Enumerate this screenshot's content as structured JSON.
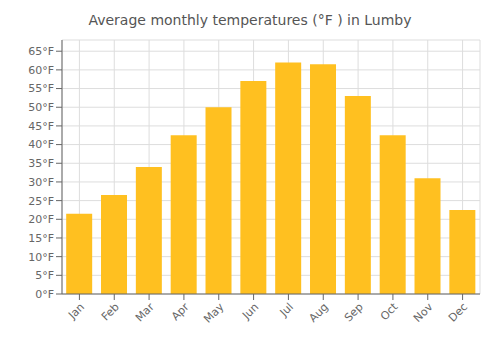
{
  "chart_data": {
    "type": "bar",
    "title": "Average monthly temperatures (°F ) in Lumby",
    "categories": [
      "Jan",
      "Feb",
      "Mar",
      "Apr",
      "May",
      "Jun",
      "Jul",
      "Aug",
      "Sep",
      "Oct",
      "Nov",
      "Dec"
    ],
    "values": [
      21.5,
      26.5,
      34.0,
      42.5,
      50.0,
      57.0,
      62.0,
      61.5,
      53.0,
      42.5,
      31.0,
      22.5
    ],
    "color": "#FFC020",
    "ylim": [
      0,
      68
    ],
    "yticks": [
      {
        "value": 0,
        "label": "0°F"
      },
      {
        "value": 5,
        "label": "5°F"
      },
      {
        "value": 10,
        "label": "10°F"
      },
      {
        "value": 15,
        "label": "15°F"
      },
      {
        "value": 20,
        "label": "20°F"
      },
      {
        "value": 25,
        "label": "25°F"
      },
      {
        "value": 30,
        "label": "30°F"
      },
      {
        "value": 35,
        "label": "35°F"
      },
      {
        "value": 40,
        "label": "40°F"
      },
      {
        "value": 45,
        "label": "45°F"
      },
      {
        "value": 50,
        "label": "50°F"
      },
      {
        "value": 55,
        "label": "55°F"
      },
      {
        "value": 60,
        "label": "60°F"
      },
      {
        "value": 65,
        "label": "65°F"
      }
    ],
    "grid": true
  }
}
